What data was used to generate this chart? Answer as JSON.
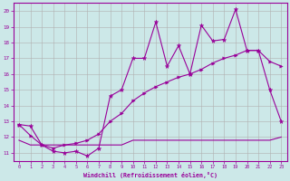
{
  "xlabel": "Windchill (Refroidissement éolien,°C)",
  "background_color": "#cce8e8",
  "grid_color": "#b0b0b0",
  "line_color": "#990099",
  "xlim": [
    -0.5,
    23.5
  ],
  "ylim": [
    10.5,
    20.5
  ],
  "xticks": [
    0,
    1,
    2,
    3,
    4,
    5,
    6,
    7,
    8,
    9,
    10,
    11,
    12,
    13,
    14,
    15,
    16,
    17,
    18,
    19,
    20,
    21,
    22,
    23
  ],
  "yticks": [
    11,
    12,
    13,
    14,
    15,
    16,
    17,
    18,
    19,
    20
  ],
  "series1_x": [
    0,
    1,
    2,
    3,
    4,
    5,
    6,
    7,
    8,
    9,
    10,
    11,
    12,
    13,
    14,
    15,
    16,
    17,
    18,
    19,
    20,
    21,
    22,
    23
  ],
  "series1_y": [
    12.8,
    12.7,
    11.5,
    11.1,
    11.0,
    11.1,
    10.8,
    11.3,
    14.6,
    15.0,
    17.0,
    17.0,
    19.3,
    16.5,
    17.8,
    16.0,
    19.1,
    18.1,
    18.2,
    20.1,
    17.5,
    17.5,
    15.0,
    13.0
  ],
  "series2_x": [
    0,
    1,
    2,
    3,
    4,
    5,
    6,
    7,
    8,
    9,
    10,
    11,
    12,
    13,
    14,
    15,
    16,
    17,
    18,
    19,
    20,
    21,
    22,
    23
  ],
  "series2_y": [
    12.8,
    12.1,
    11.5,
    11.3,
    11.5,
    11.6,
    11.8,
    12.2,
    13.0,
    13.5,
    14.3,
    14.8,
    15.2,
    15.5,
    15.8,
    16.0,
    16.3,
    16.7,
    17.0,
    17.2,
    17.5,
    17.5,
    16.8,
    16.5
  ],
  "series3_x": [
    0,
    1,
    2,
    3,
    4,
    5,
    6,
    7,
    8,
    9,
    10,
    11,
    12,
    13,
    14,
    15,
    16,
    17,
    18,
    19,
    20,
    21,
    22,
    23
  ],
  "series3_y": [
    11.8,
    11.5,
    11.5,
    11.5,
    11.5,
    11.5,
    11.5,
    11.5,
    11.5,
    11.5,
    11.8,
    11.8,
    11.8,
    11.8,
    11.8,
    11.8,
    11.8,
    11.8,
    11.8,
    11.8,
    11.8,
    11.8,
    11.8,
    12.0
  ]
}
